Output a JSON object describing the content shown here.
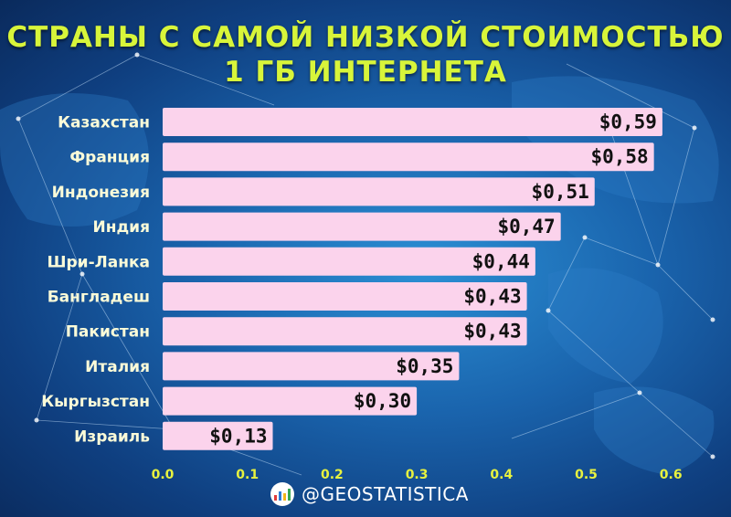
{
  "header": {
    "title_line1": "СТРАНЫ С САМОЙ НИЗКОЙ СТОИМОСТЬЮ",
    "title_line2": "1 ГБ ИНТЕРНЕТА"
  },
  "brand": {
    "handle": "@GEOSTATISTICA",
    "logo_icon": "bar-chart-logo-icon"
  },
  "colors": {
    "bar": "#fbd3ec",
    "title": "#d8f53a",
    "tick": "#e7f23f",
    "label": "#fbfbd8"
  },
  "chart_data": {
    "type": "bar",
    "orientation": "horizontal",
    "categories": [
      "Казахстан",
      "Франция",
      "Индонезия",
      "Индия",
      "Шри-Ланка",
      "Бангладеш",
      "Пакистан",
      "Италия",
      "Кыргызстан",
      "Израиль"
    ],
    "values": [
      0.59,
      0.58,
      0.51,
      0.47,
      0.44,
      0.43,
      0.43,
      0.35,
      0.3,
      0.13
    ],
    "value_labels": [
      "$0,59",
      "$0,58",
      "$0,51",
      "$0,47",
      "$0,44",
      "$0,43",
      "$0,43",
      "$0,35",
      "$0,30",
      "$0,13"
    ],
    "x_ticks": [
      "0.0",
      "0.1",
      "0.2",
      "0.3",
      "0.4",
      "0.5",
      "0.6"
    ],
    "xlim": [
      0,
      0.6
    ],
    "grid": false,
    "legend": "none"
  }
}
